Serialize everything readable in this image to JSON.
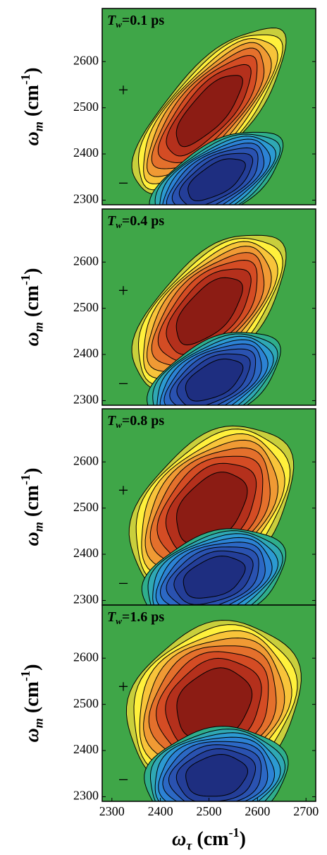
{
  "chart_data": [
    {
      "type": "contour",
      "title": {
        "main": "T",
        "sub": "w",
        "rest": "=0.1 ps"
      },
      "ylabel": {
        "main": "ω",
        "sub": "m",
        "rest": " (cm",
        "sup": "-1",
        "end": ")"
      },
      "xlim": [
        2280,
        2720
      ],
      "ylim": [
        2290,
        2715
      ],
      "yticks": [
        2300,
        2400,
        2500,
        2600
      ],
      "annotations": [
        "+",
        "−"
      ],
      "background": "#3fa648",
      "positive_colors": [
        "#c9cf3c",
        "#fff03c",
        "#f8c43a",
        "#f09a34",
        "#e4702c",
        "#d44c24",
        "#b4301c",
        "#8c1c14"
      ],
      "negative_colors": [
        "#2fae8c",
        "#2fa8b4",
        "#2c9ad2",
        "#2c82d4",
        "#2c68c4",
        "#2a52b0",
        "#243e98",
        "#1e2e80"
      ],
      "peaks": [
        {
          "x": 2500,
          "y": 2495,
          "sx": 75,
          "sy": 85,
          "correlation": 0.75
        },
        {
          "x": 2515,
          "y": 2345,
          "sx": 65,
          "sy": 50,
          "correlation": 0.6
        }
      ]
    },
    {
      "type": "contour",
      "title": {
        "main": "T",
        "sub": "w",
        "rest": "=0.4 ps"
      },
      "ylabel": {
        "main": "ω",
        "sub": "m",
        "rest": " (cm",
        "sup": "-1",
        "end": ")"
      },
      "xlim": [
        2280,
        2720
      ],
      "ylim": [
        2290,
        2715
      ],
      "yticks": [
        2300,
        2400,
        2500,
        2600
      ],
      "annotations": [
        "+",
        "−"
      ],
      "background": "#3fa648",
      "positive_colors": [
        "#c9cf3c",
        "#fff03c",
        "#f8c43a",
        "#f09a34",
        "#e4702c",
        "#d44c24",
        "#b4301c",
        "#8c1c14"
      ],
      "negative_colors": [
        "#2fae8c",
        "#2fa8b4",
        "#2c9ad2",
        "#2c82d4",
        "#2c68c4",
        "#2a52b0",
        "#243e98",
        "#1e2e80"
      ],
      "peaks": [
        {
          "x": 2500,
          "y": 2495,
          "sx": 75,
          "sy": 80,
          "correlation": 0.6
        },
        {
          "x": 2510,
          "y": 2345,
          "sx": 65,
          "sy": 50,
          "correlation": 0.5
        }
      ]
    },
    {
      "type": "contour",
      "title": {
        "main": "T",
        "sub": "w",
        "rest": "=0.8 ps"
      },
      "ylabel": {
        "main": "ω",
        "sub": "m",
        "rest": " (cm",
        "sup": "-1",
        "end": ")"
      },
      "xlim": [
        2280,
        2720
      ],
      "ylim": [
        2290,
        2715
      ],
      "yticks": [
        2300,
        2400,
        2500,
        2600
      ],
      "annotations": [
        "+",
        "−"
      ],
      "background": "#3fa648",
      "positive_colors": [
        "#c9cf3c",
        "#fff03c",
        "#f8c43a",
        "#f09a34",
        "#e4702c",
        "#d44c24",
        "#b4301c",
        "#8c1c14"
      ],
      "negative_colors": [
        "#2fae8c",
        "#2fa8b4",
        "#2c9ad2",
        "#2c82d4",
        "#2c68c4",
        "#2a52b0",
        "#243e98",
        "#1e2e80"
      ],
      "peaks": [
        {
          "x": 2505,
          "y": 2500,
          "sx": 80,
          "sy": 85,
          "correlation": 0.4
        },
        {
          "x": 2510,
          "y": 2350,
          "sx": 70,
          "sy": 50,
          "correlation": 0.35
        }
      ]
    },
    {
      "type": "contour",
      "title": {
        "main": "T",
        "sub": "w",
        "rest": "=1.6 ps"
      },
      "ylabel": {
        "main": "ω",
        "sub": "m",
        "rest": " (cm",
        "sup": "-1",
        "end": ")"
      },
      "xlabel": {
        "main": "ω",
        "sub": "τ",
        "rest": " (cm",
        "sup": "-1",
        "end": ")"
      },
      "xlim": [
        2280,
        2720
      ],
      "ylim": [
        2290,
        2715
      ],
      "yticks": [
        2300,
        2400,
        2500,
        2600
      ],
      "xticks": [
        2300,
        2400,
        2500,
        2600,
        2700
      ],
      "annotations": [
        "+",
        "−"
      ],
      "background": "#3fa648",
      "positive_colors": [
        "#c9cf3c",
        "#fff03c",
        "#f8c43a",
        "#f09a34",
        "#e4702c",
        "#d44c24",
        "#b4301c",
        "#8c1c14"
      ],
      "negative_colors": [
        "#2fae8c",
        "#2fa8b4",
        "#2c9ad2",
        "#2c82d4",
        "#2c68c4",
        "#2a52b0",
        "#243e98",
        "#1e2e80"
      ],
      "peaks": [
        {
          "x": 2510,
          "y": 2500,
          "sx": 85,
          "sy": 85,
          "correlation": 0.2
        },
        {
          "x": 2515,
          "y": 2345,
          "sx": 70,
          "sy": 50,
          "correlation": 0.15
        }
      ]
    }
  ]
}
